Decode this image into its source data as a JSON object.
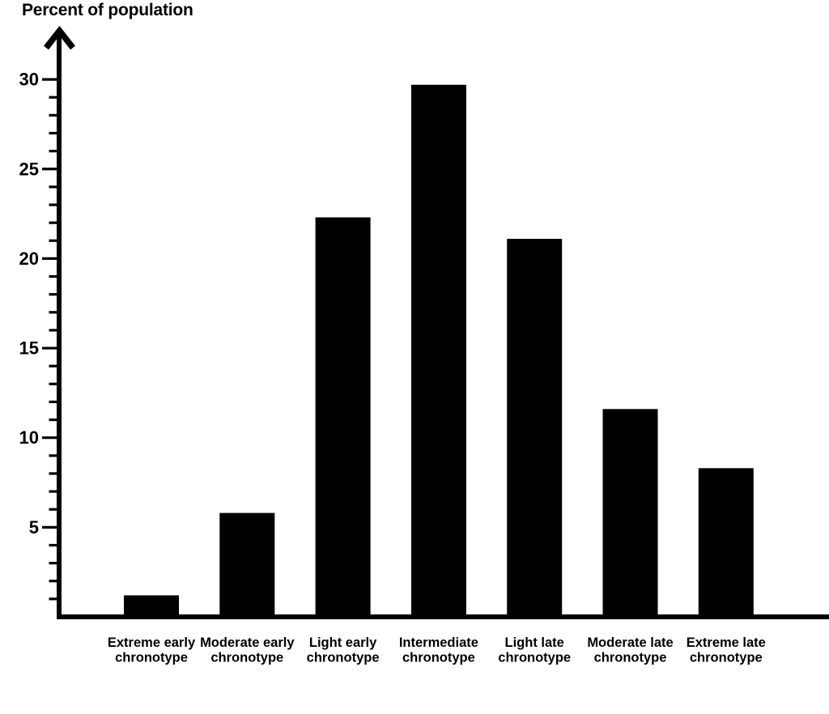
{
  "chart_data": {
    "type": "bar",
    "title": "Percent of population",
    "ylabel": "Percent of population",
    "xlabel": "",
    "categories": [
      "Extreme early chronotype",
      "Moderate early chronotype",
      "Light early chronotype",
      "Intermediate chronotype",
      "Light late chronotype",
      "Moderate late chronotype",
      "Extreme late chronotype"
    ],
    "values": [
      1.2,
      5.8,
      22.3,
      29.7,
      21.1,
      11.6,
      8.3
    ],
    "ylim": [
      0,
      32.5
    ],
    "yticks_major": [
      5,
      10,
      15,
      20,
      25,
      30
    ],
    "minor_tick_interval": 1,
    "grid": false,
    "legend": false,
    "bar_color": "#000000",
    "axis_color": "#000000",
    "text_color": "#000000",
    "background_color": "#ffffff"
  }
}
